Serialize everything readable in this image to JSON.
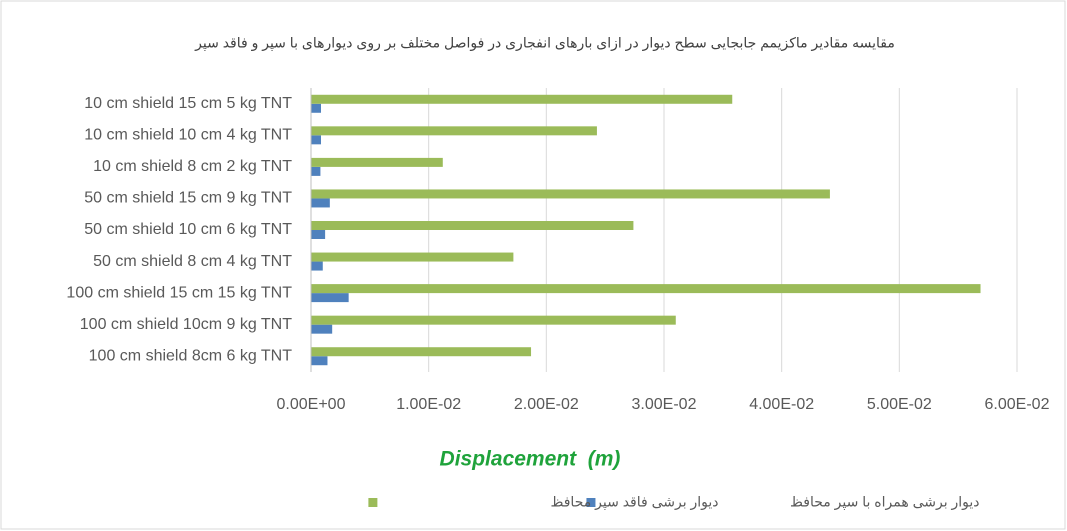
{
  "chart_data": {
    "type": "hbar",
    "title": "مقایسه مقادیر ماکزیمم جابجایی سطح دیوار در ازای بارهای انفجاری در فواصل مختلف بر روی دیوارهای با سپر و فاقد سپر",
    "x_label": "Displacement  (m)",
    "categories": [
      "10 cm shield 15 cm 5 kg TNT",
      "10 cm shield 10 cm 4 kg TNT",
      "10 cm shield 8 cm 2 kg TNT",
      "50 cm shield 15 cm 9 kg TNT",
      "50 cm shield 10 cm 6 kg TNT",
      "50 cm shield 8 cm 4 kg TNT",
      "100 cm shield 15 cm 15 kg TNT",
      "100 cm shield 10cm 9 kg TNT",
      "100 cm shield 8cm 6 kg TNT"
    ],
    "series": [
      {
        "name": "دیوار برشی همراه با سپر محافظ",
        "color": "#4f81bd",
        "values": [
          0.00085,
          0.00085,
          0.0008,
          0.0016,
          0.0012,
          0.001,
          0.0032,
          0.0018,
          0.0014
        ]
      },
      {
        "name": "دیوار برشی فاقد سپر محافظ",
        "color": "#9bbb59",
        "values": [
          0.0358,
          0.0243,
          0.0112,
          0.0441,
          0.0274,
          0.0172,
          0.0569,
          0.031,
          0.0187
        ]
      }
    ],
    "xlim": [
      0,
      0.06
    ],
    "xticks": [
      {
        "value": 0,
        "label": "0.00E+00"
      },
      {
        "value": 0.01,
        "label": "1.00E-02"
      },
      {
        "value": 0.02,
        "label": "2.00E-02"
      },
      {
        "value": 0.03,
        "label": "3.00E-02"
      },
      {
        "value": 0.04,
        "label": "4.00E-02"
      },
      {
        "value": 0.05,
        "label": "5.00E-02"
      },
      {
        "value": 0.06,
        "label": "6.00E-02"
      }
    ],
    "grid": true,
    "legend": "bottom"
  }
}
